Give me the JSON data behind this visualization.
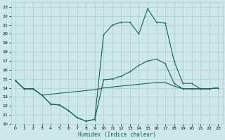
{
  "xlabel": "Humidex (Indice chaleur)",
  "bg_color": "#cce8e8",
  "grid_color": "#aacccc",
  "line_color": "#1a5f5f",
  "xlim": [
    -0.5,
    23.5
  ],
  "ylim": [
    10,
    23.5
  ],
  "xticks": [
    0,
    1,
    2,
    3,
    4,
    5,
    6,
    7,
    8,
    9,
    10,
    11,
    12,
    13,
    14,
    15,
    16,
    17,
    18,
    19,
    20,
    21,
    22,
    23
  ],
  "yticks": [
    10,
    11,
    12,
    13,
    14,
    15,
    16,
    17,
    18,
    19,
    20,
    21,
    22,
    23
  ],
  "line_top_x": [
    0,
    1,
    2,
    3,
    4,
    5,
    6,
    7,
    8,
    9,
    10,
    11,
    12,
    13,
    14,
    15,
    16,
    17,
    18,
    19,
    20,
    21,
    22,
    23
  ],
  "line_top_y": [
    14.8,
    13.9,
    13.9,
    13.2,
    12.2,
    12.1,
    11.5,
    10.7,
    10.3,
    10.5,
    19.9,
    21.0,
    21.3,
    21.3,
    20.0,
    22.8,
    21.3,
    21.2,
    17.0,
    14.5,
    14.5,
    13.9,
    13.9,
    14.0
  ],
  "line_mid_x": [
    0,
    1,
    2,
    3,
    4,
    5,
    6,
    7,
    8,
    9,
    10,
    11,
    12,
    13,
    14,
    15,
    16,
    17,
    18,
    19,
    20,
    21,
    22,
    23
  ],
  "line_mid_y": [
    14.8,
    13.9,
    13.9,
    13.2,
    12.2,
    12.1,
    11.5,
    10.7,
    10.3,
    10.5,
    14.9,
    15.0,
    15.3,
    15.8,
    16.5,
    17.0,
    17.2,
    16.7,
    14.5,
    13.9,
    13.9,
    13.9,
    13.9,
    14.0
  ],
  "line_bot_x": [
    0,
    1,
    2,
    3,
    9,
    10,
    11,
    12,
    13,
    14,
    15,
    16,
    17,
    18,
    19,
    20,
    21,
    22,
    23
  ],
  "line_bot_y": [
    14.8,
    13.9,
    13.9,
    13.2,
    13.8,
    14.0,
    14.1,
    14.2,
    14.3,
    14.4,
    14.5,
    14.6,
    14.6,
    14.2,
    13.9,
    13.9,
    13.9,
    13.9,
    14.0
  ]
}
